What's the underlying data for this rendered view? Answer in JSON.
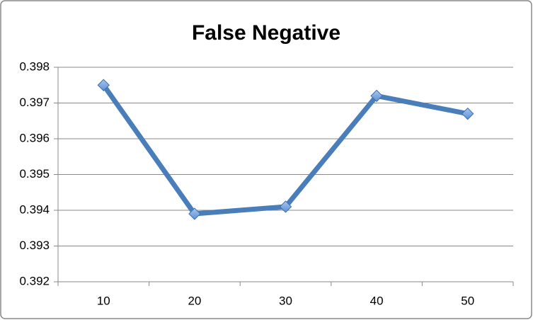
{
  "chart_data": {
    "type": "line",
    "title": "False Negative",
    "categories": [
      "10",
      "20",
      "30",
      "40",
      "50"
    ],
    "series": [
      {
        "name": "False Negative",
        "color": "#4a7ebb",
        "values": [
          0.3975,
          0.3939,
          0.3941,
          0.3972,
          0.3967
        ]
      }
    ],
    "ylim": [
      0.392,
      0.398
    ],
    "yticks": [
      0.392,
      0.393,
      0.394,
      0.395,
      0.396,
      0.397,
      0.398
    ],
    "grid": true
  }
}
